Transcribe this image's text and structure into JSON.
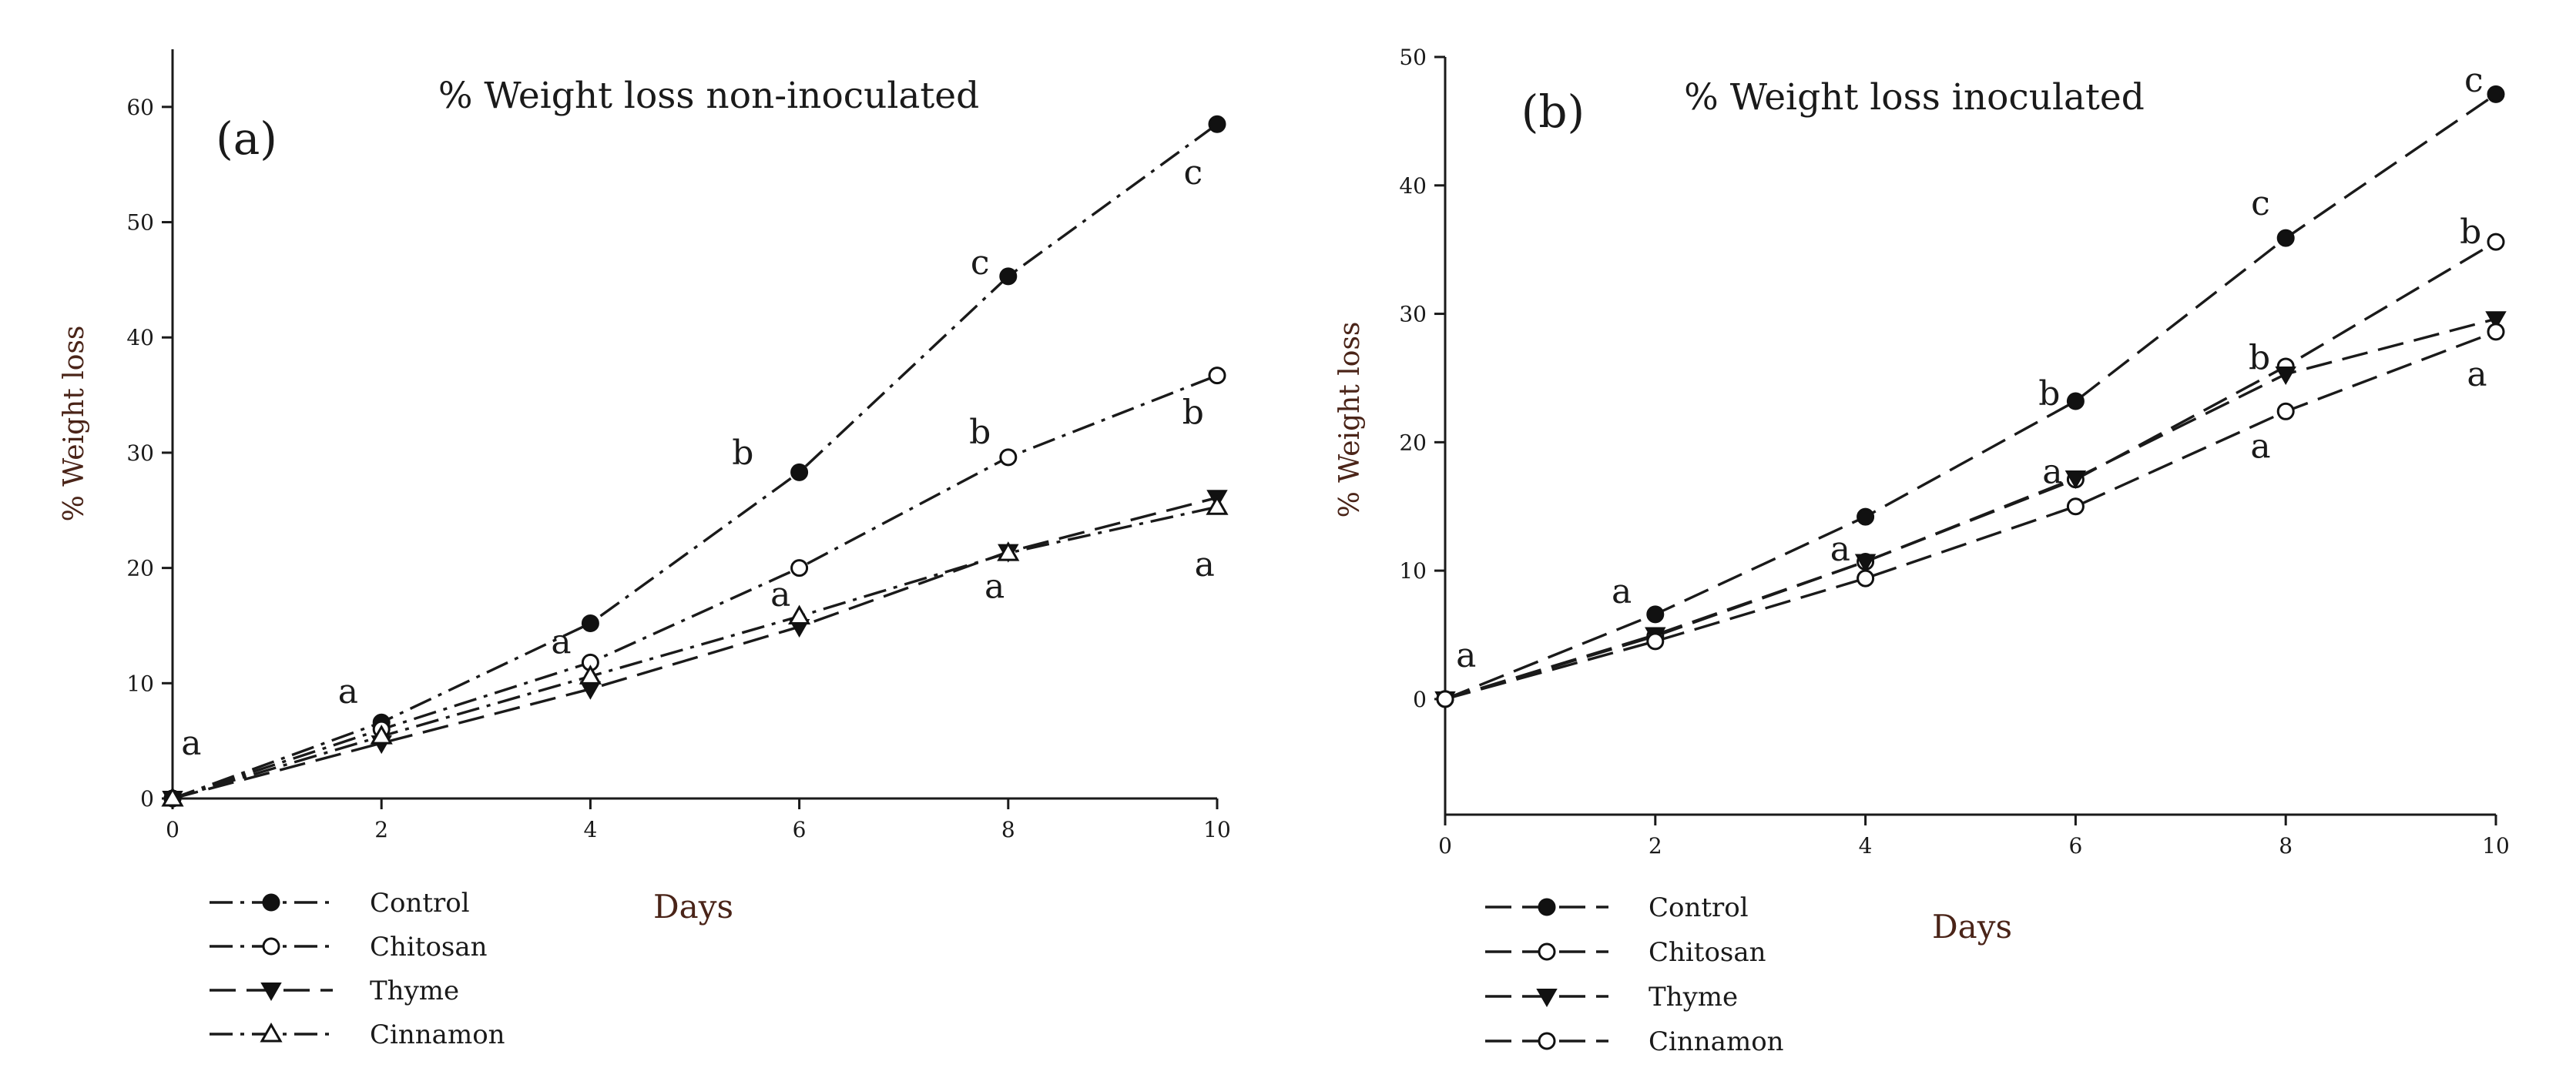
{
  "chart_data": [
    {
      "type": "line",
      "panel_label": "(a)",
      "title": "% Weight loss non-inoculated",
      "xlabel": "Days",
      "ylabel": "% Weight loss",
      "xlim": [
        0,
        10
      ],
      "ylim": [
        0,
        65
      ],
      "xticks": [
        0,
        2,
        4,
        6,
        8,
        10
      ],
      "yticks": [
        0,
        10,
        20,
        30,
        40,
        50,
        60
      ],
      "x": [
        0,
        2,
        4,
        6,
        8,
        10
      ],
      "series": [
        {
          "name": "Control",
          "marker": "filled-circle",
          "dash": "long-dash-dot",
          "values": [
            0,
            6.6,
            15.2,
            28.3,
            45.3,
            58.5
          ]
        },
        {
          "name": "Chitosan",
          "marker": "open-circle",
          "dash": "long-dash-dot",
          "values": [
            0,
            6.0,
            11.8,
            20.0,
            29.6,
            36.7
          ]
        },
        {
          "name": "Thyme",
          "marker": "filled-triangle-down",
          "dash": "long-dash",
          "values": [
            0,
            4.8,
            9.5,
            14.9,
            21.4,
            26.1
          ]
        },
        {
          "name": "Cinnamon",
          "marker": "open-triangle-up",
          "dash": "long-dash-dot",
          "values": [
            0,
            5.4,
            10.6,
            15.8,
            21.3,
            25.3
          ]
        }
      ],
      "annotations": [
        {
          "text": "a",
          "x": 0.18,
          "y": 3.8
        },
        {
          "text": "a",
          "x": 1.68,
          "y": 8.3
        },
        {
          "text": "a",
          "x": 3.72,
          "y": 12.6
        },
        {
          "text": "b",
          "x": 5.46,
          "y": 29.0
        },
        {
          "text": "a",
          "x": 5.82,
          "y": 16.7
        },
        {
          "text": "c",
          "x": 7.73,
          "y": 45.5
        },
        {
          "text": "b",
          "x": 7.73,
          "y": 30.8
        },
        {
          "text": "a",
          "x": 7.87,
          "y": 17.4
        },
        {
          "text": "c",
          "x": 9.77,
          "y": 53.3
        },
        {
          "text": "b",
          "x": 9.77,
          "y": 32.5
        },
        {
          "text": "a",
          "x": 9.88,
          "y": 19.3
        }
      ],
      "legend": [
        "Control",
        "Chitosan",
        "Thyme",
        "Cinnamon"
      ],
      "legend_position": "below-left"
    },
    {
      "type": "line",
      "panel_label": "(b)",
      "title": "% Weight loss inoculated",
      "xlabel": "Days",
      "ylabel": "% Weight loss",
      "xlim": [
        0,
        10
      ],
      "ylim": [
        -9,
        50
      ],
      "xticks": [
        0,
        2,
        4,
        6,
        8,
        10
      ],
      "yticks": [
        0,
        10,
        20,
        30,
        40,
        50
      ],
      "x": [
        0,
        2,
        4,
        6,
        8,
        10
      ],
      "series": [
        {
          "name": "Control",
          "marker": "filled-circle",
          "dash": "long-dash",
          "values": [
            0,
            6.6,
            14.2,
            23.2,
            35.9,
            47.1
          ]
        },
        {
          "name": "Chitosan",
          "marker": "open-circle",
          "dash": "long-dash",
          "values": [
            0,
            4.9,
            10.7,
            17.1,
            25.9,
            35.6
          ]
        },
        {
          "name": "Thyme",
          "marker": "filled-triangle-down",
          "dash": "long-dash",
          "values": [
            0,
            5.0,
            10.7,
            17.2,
            25.3,
            29.6
          ]
        },
        {
          "name": "Cinnamon",
          "marker": "open-circle",
          "dash": "long-dash",
          "values": [
            0,
            4.5,
            9.4,
            15.0,
            22.4,
            28.6
          ]
        }
      ],
      "annotations": [
        {
          "text": "a",
          "x": 0.2,
          "y": 2.5
        },
        {
          "text": "a",
          "x": 1.68,
          "y": 7.5
        },
        {
          "text": "a",
          "x": 3.76,
          "y": 10.8
        },
        {
          "text": "b",
          "x": 5.75,
          "y": 22.9
        },
        {
          "text": "a",
          "x": 5.78,
          "y": 16.8
        },
        {
          "text": "c",
          "x": 7.76,
          "y": 37.7
        },
        {
          "text": "b",
          "x": 7.75,
          "y": 25.7
        },
        {
          "text": "a",
          "x": 7.76,
          "y": 18.8
        },
        {
          "text": "c",
          "x": 9.79,
          "y": 47.3
        },
        {
          "text": "b",
          "x": 9.76,
          "y": 35.5
        },
        {
          "text": "a",
          "x": 9.82,
          "y": 24.4
        }
      ],
      "legend": [
        "Control",
        "Chitosan",
        "Thyme",
        "Cinnamon"
      ],
      "legend_position": "below-left"
    }
  ]
}
